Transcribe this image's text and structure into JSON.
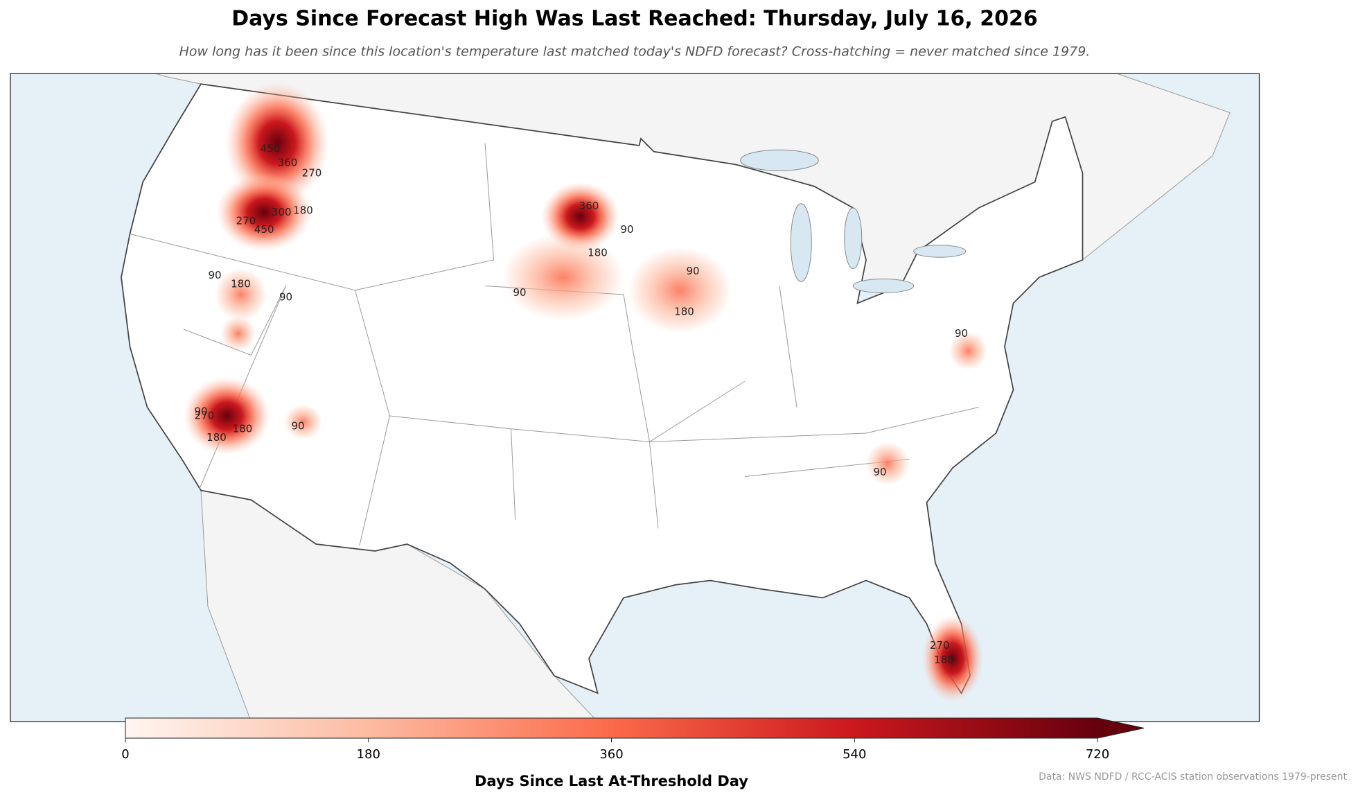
{
  "header": {
    "title": "Days Since Forecast High Was Last Reached: Thursday, July 16, 2026",
    "subtitle": "How long has it been since this location's temperature last matched today's NDFD forecast? Cross-hatching = never matched since 1979."
  },
  "map": {
    "contour_labels": [
      "450",
      "360",
      "270",
      "180",
      "270",
      "450",
      "300",
      "180",
      "90",
      "270",
      "180",
      "90",
      "360",
      "180",
      "90",
      "90",
      "90",
      "180",
      "90",
      "90",
      "90",
      "270",
      "180",
      "90",
      "180"
    ]
  },
  "colorbar": {
    "label": "Days Since Last At-Threshold Day",
    "range": [
      0,
      720
    ],
    "ticks": [
      0,
      180,
      360,
      540,
      720
    ],
    "extend": "max",
    "colors": [
      "#fff5f0",
      "#fcbba1",
      "#fb6a4a",
      "#cb181d",
      "#67000d"
    ]
  },
  "source": "Data: NWS NDFD / RCC-ACIS station observations 1979-present"
}
